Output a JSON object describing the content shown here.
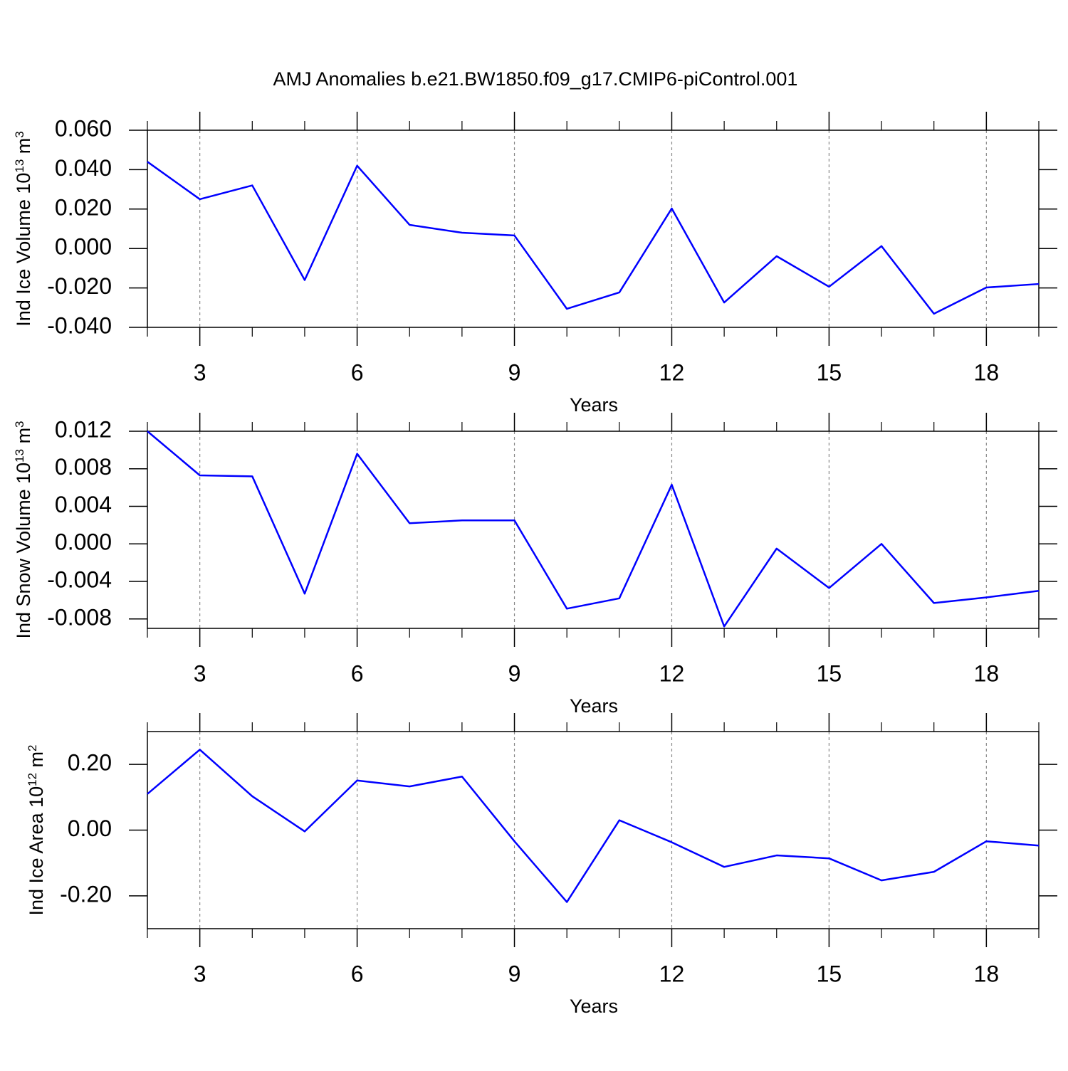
{
  "title": "AMJ Anomalies b.e21.BW1850.f09_g17.CMIP6-piControl.001",
  "chart_data": [
    {
      "type": "line",
      "xlabel": "Years",
      "ylabel": {
        "text": "Ind Ice Volume 10",
        "exponent": "13",
        "unit": " m",
        "unit_exponent": "3"
      },
      "x": [
        2,
        3,
        4,
        5,
        6,
        7,
        8,
        9,
        10,
        11,
        12,
        13,
        14,
        15,
        16,
        17,
        18,
        19
      ],
      "values": [
        0.044,
        0.025,
        0.032,
        -0.016,
        0.042,
        0.012,
        0.008,
        0.0066,
        -0.0306,
        -0.0223,
        0.0203,
        -0.0274,
        -0.0039,
        -0.0194,
        0.0012,
        -0.0331,
        -0.0198,
        -0.018
      ],
      "color": "#0000ff",
      "xlim": [
        2,
        19
      ],
      "xticks": [
        3,
        6,
        9,
        12,
        15,
        18
      ],
      "ylim": [
        -0.04,
        0.06
      ],
      "yticks": [
        {
          "value": -0.04,
          "label": "-0.040"
        },
        {
          "value": -0.02,
          "label": "-0.020"
        },
        {
          "value": 0,
          "label": "0.000"
        },
        {
          "value": 0.02,
          "label": "0.020"
        },
        {
          "value": 0.04,
          "label": "0.040"
        },
        {
          "value": 0.06,
          "label": "0.060"
        }
      ],
      "grid": true
    },
    {
      "type": "line",
      "xlabel": "Years",
      "ylabel": {
        "text": "Ind Snow Volume 10",
        "exponent": "13",
        "unit": " m",
        "unit_exponent": "3"
      },
      "x": [
        2,
        3,
        4,
        5,
        6,
        7,
        8,
        9,
        10,
        11,
        12,
        13,
        14,
        15,
        16,
        17,
        18,
        19
      ],
      "values": [
        0.012,
        0.0073,
        0.0072,
        -0.0053,
        0.0096,
        0.0022,
        0.0025,
        0.0025,
        -0.0069,
        -0.0058,
        0.0063,
        -0.0088,
        -0.0005,
        -0.0047,
        0.0,
        -0.0063,
        -0.0057,
        -0.005
      ],
      "color": "#0000ff",
      "xlim": [
        2,
        19
      ],
      "xticks": [
        3,
        6,
        9,
        12,
        15,
        18
      ],
      "ylim": [
        -0.009,
        0.012
      ],
      "yticks": [
        {
          "value": -0.008,
          "label": "-0.008"
        },
        {
          "value": -0.004,
          "label": "-0.004"
        },
        {
          "value": 0,
          "label": "0.000"
        },
        {
          "value": 0.004,
          "label": "0.004"
        },
        {
          "value": 0.008,
          "label": "0.008"
        },
        {
          "value": 0.012,
          "label": "0.012"
        }
      ],
      "grid": true
    },
    {
      "type": "line",
      "xlabel": "Years",
      "ylabel": {
        "text": "Ind Ice Area 10",
        "exponent": "12",
        "unit": " m",
        "unit_exponent": "2"
      },
      "x": [
        2,
        3,
        4,
        5,
        6,
        7,
        8,
        9,
        10,
        11,
        12,
        13,
        14,
        15,
        16,
        17,
        18,
        19
      ],
      "values": [
        0.11,
        0.245,
        0.103,
        -0.004,
        0.151,
        0.133,
        0.163,
        -0.034,
        -0.219,
        0.03,
        -0.037,
        -0.112,
        -0.077,
        -0.086,
        -0.153,
        -0.127,
        -0.034,
        -0.047
      ],
      "color": "#0000ff",
      "xlim": [
        2,
        19
      ],
      "xticks": [
        3,
        6,
        9,
        12,
        15,
        18
      ],
      "ylim": [
        -0.3,
        0.3
      ],
      "yticks": [
        {
          "value": -0.2,
          "label": "-0.20"
        },
        {
          "value": 0,
          "label": "0.00"
        },
        {
          "value": 0.2,
          "label": "0.20"
        }
      ],
      "grid": true
    }
  ]
}
